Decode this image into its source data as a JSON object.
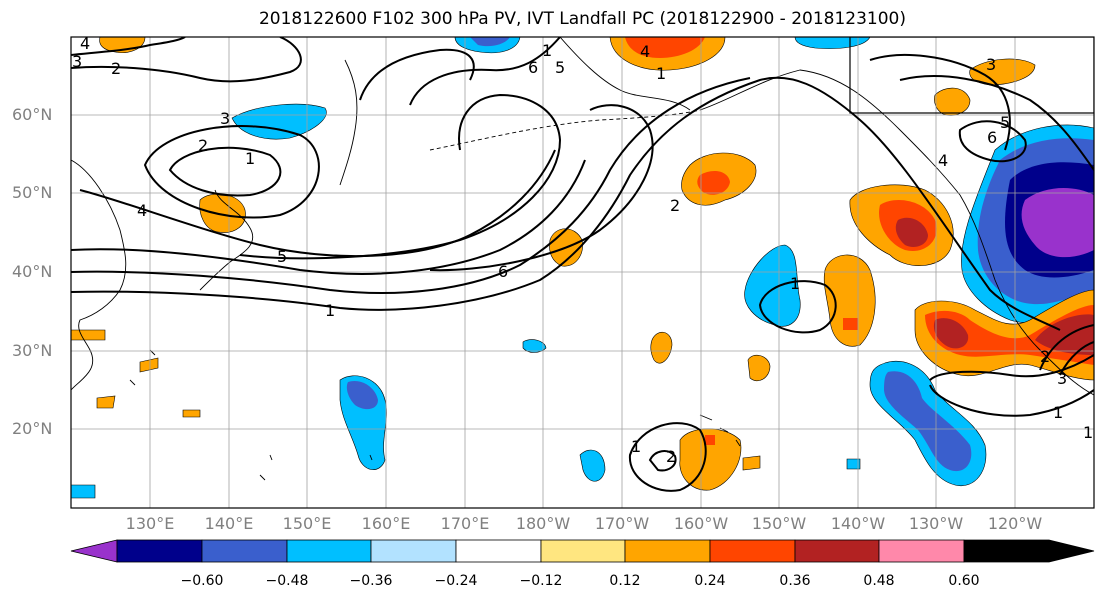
{
  "title": "2018122600 F102 300 hPa PV, IVT Landfall PC (2018122900 - 2018123100)",
  "latitude_labels": [
    "60°N",
    "50°N",
    "40°N",
    "30°N",
    "20°N"
  ],
  "longitude_labels": [
    "130°E",
    "140°E",
    "150°E",
    "160°E",
    "170°E",
    "180°W",
    "170°W",
    "160°W",
    "150°W",
    "140°W",
    "130°W",
    "120°W"
  ],
  "colorbar": {
    "ticks": [
      "−0.60",
      "−0.48",
      "−0.36",
      "−0.24",
      "−0.12",
      "0.12",
      "0.24",
      "0.36",
      "0.48",
      "0.60"
    ],
    "colors": [
      "#9932cc",
      "#00008b",
      "#3a5fcd",
      "#00bfff",
      "#b2e2ff",
      "#ffffff",
      "#ffe680",
      "#ffa500",
      "#ff4500",
      "#b22222",
      "#ff88aa"
    ]
  },
  "contour_labels": [
    "4",
    "3",
    "2",
    "3",
    "2",
    "1",
    "4",
    "5",
    "1",
    "1",
    "6",
    "5",
    "4",
    "1",
    "6",
    "2",
    "3",
    "6",
    "5",
    "4",
    "1",
    "1",
    "2",
    "3",
    "1",
    "1",
    "2"
  ]
}
